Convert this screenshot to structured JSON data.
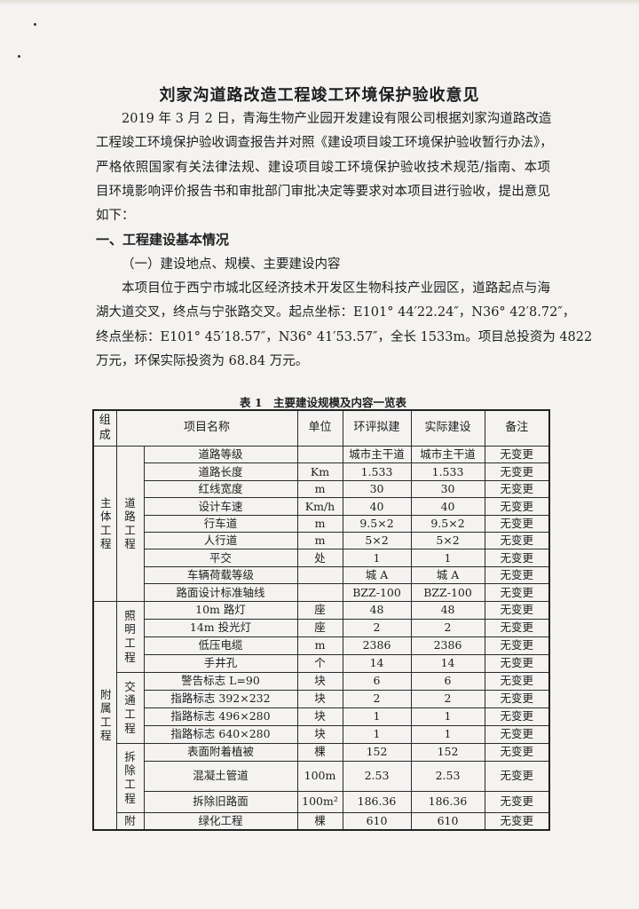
{
  "title": "刘家沟道路改造工程竣工环境保护验收意见",
  "intro_lines": [
    "2019 年 3 月 2 日，青海生物产业园开发建设有限公司根据刘家沟道路改造",
    "工程竣工环境保护验收调查报告并对照《建设项目竣工环境保护验收暂行办法》，",
    "严格依照国家有关法律法规、建设项目竣工环境保护验收技术规范/指南、本项",
    "目环境影响评价报告书和审批部门审批决定等要求对本项目进行验收，提出意见",
    "如下："
  ],
  "section1_heading": "一、工程建设基本情况",
  "subsection1_heading": "（一）建设地点、规模、主要建设内容",
  "location_lines": [
    "本项目位于西宁市城北区经济技术开发区生物科技产业园区，道路起点与海",
    "湖大道交叉，终点与宁张路交叉。起点坐标：E101° 44′22.24″，N36° 42′8.72″，",
    "终点坐标：E101° 45′18.57″，N36° 41′53.57″，全长 1533m。项目总投资为 4822",
    "万元，环保实际投资为 68.84 万元。"
  ],
  "table": {
    "caption": "表 1　主要建设规模及内容一览表",
    "headers": [
      "组成",
      "项目名称",
      "单位",
      "环评拟建",
      "实际建设",
      "备注"
    ],
    "groups": [
      {
        "name": "主体工程",
        "subgroups": [
          {
            "name": "道路工程",
            "rows": [
              [
                "道路等级",
                "",
                "城市主干道",
                "城市主干道",
                "无变更"
              ],
              [
                "道路长度",
                "Km",
                "1.533",
                "1.533",
                "无变更"
              ],
              [
                "红线宽度",
                "m",
                "30",
                "30",
                "无变更"
              ],
              [
                "设计车速",
                "Km/h",
                "40",
                "40",
                "无变更"
              ],
              [
                "行车道",
                "m",
                "9.5×2",
                "9.5×2",
                "无变更"
              ],
              [
                "人行道",
                "m",
                "5×2",
                "5×2",
                "无变更"
              ],
              [
                "平交",
                "处",
                "1",
                "1",
                "无变更"
              ],
              [
                "车辆荷载等级",
                "",
                "城 A",
                "城 A",
                "无变更"
              ],
              [
                "路面设计标准轴线",
                "",
                "BZZ-100",
                "BZZ-100",
                "无变更"
              ]
            ]
          }
        ]
      },
      {
        "name": "附属工程",
        "subgroups": [
          {
            "name": "照明工程",
            "rows": [
              [
                "10m 路灯",
                "座",
                "48",
                "48",
                "无变更"
              ],
              [
                "14m 投光灯",
                "座",
                "2",
                "2",
                "无变更"
              ],
              [
                "低压电缆",
                "m",
                "2386",
                "2386",
                "无变更"
              ],
              [
                "手井孔",
                "个",
                "14",
                "14",
                "无变更"
              ]
            ]
          },
          {
            "name": "交通工程",
            "rows": [
              [
                "警告标志 L=90",
                "块",
                "6",
                "6",
                "无变更"
              ],
              [
                "指路标志 392×232",
                "块",
                "2",
                "2",
                "无变更"
              ],
              [
                "指路标志 496×280",
                "块",
                "1",
                "1",
                "无变更"
              ],
              [
                "指路标志 640×280",
                "块",
                "1",
                "1",
                "无变更"
              ]
            ]
          },
          {
            "name": "拆除工程",
            "rows": [
              [
                "表面附着植被",
                "棵",
                "152",
                "152",
                "无变更"
              ],
              [
                "混凝土管道",
                "100m",
                "2.53",
                "2.53",
                "无变更"
              ],
              [
                "拆除旧路面",
                "100m²",
                "186.36",
                "186.36",
                "无变更"
              ]
            ]
          },
          {
            "name": "附",
            "rows": [
              [
                "绿化工程",
                "棵",
                "610",
                "610",
                "无变更"
              ]
            ]
          }
        ]
      }
    ]
  }
}
